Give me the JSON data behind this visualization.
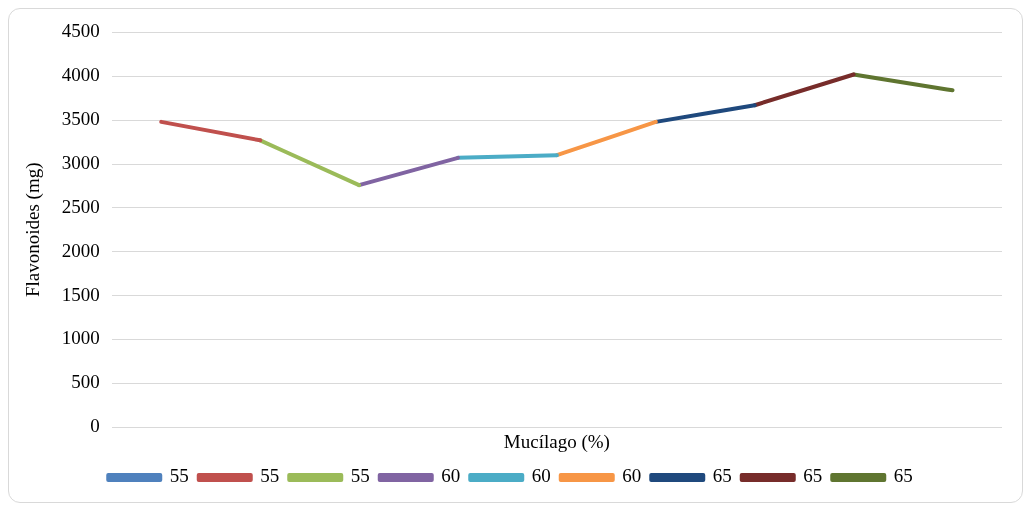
{
  "chart_data": {
    "type": "line",
    "xlabel": "Mucílago (%)",
    "ylabel": "Flavonoides (mg)",
    "categories": [
      null,
      null,
      null,
      null,
      null,
      null,
      null,
      null,
      null
    ],
    "series": [
      {
        "name": "55",
        "color": "#4f81bd",
        "values": [
          null,
          null,
          null,
          null,
          null,
          null,
          null,
          null,
          null
        ]
      },
      {
        "name": "55",
        "color": "#c0504d",
        "values": [
          3480,
          3270,
          null,
          null,
          null,
          null,
          null,
          null,
          null
        ]
      },
      {
        "name": "55",
        "color": "#9bbb59",
        "values": [
          null,
          3270,
          2760,
          null,
          null,
          null,
          null,
          null,
          null
        ]
      },
      {
        "name": "60",
        "color": "#8064a2",
        "values": [
          null,
          null,
          2760,
          3070,
          null,
          null,
          null,
          null,
          null
        ]
      },
      {
        "name": "60",
        "color": "#4bacc6",
        "values": [
          null,
          null,
          null,
          3070,
          3100,
          null,
          null,
          null,
          null
        ]
      },
      {
        "name": "60",
        "color": "#f79646",
        "values": [
          null,
          null,
          null,
          null,
          3100,
          3480,
          null,
          null,
          null
        ]
      },
      {
        "name": "65",
        "color": "#1f497d",
        "values": [
          null,
          null,
          null,
          null,
          null,
          3480,
          3670,
          null,
          null
        ]
      },
      {
        "name": "65",
        "color": "#772c2a",
        "values": [
          null,
          null,
          null,
          null,
          null,
          null,
          3670,
          4020,
          null
        ]
      },
      {
        "name": "65",
        "color": "#5f7530",
        "values": [
          null,
          null,
          null,
          null,
          null,
          null,
          null,
          4020,
          3840
        ]
      }
    ],
    "ylim": [
      0,
      4500
    ],
    "yticks": [
      0,
      500,
      1000,
      1500,
      2000,
      2500,
      3000,
      3500,
      4000,
      4500
    ],
    "grid": "y",
    "legend": "bottom",
    "tick_labels": "y",
    "marker": "none",
    "line_style": "solid"
  }
}
